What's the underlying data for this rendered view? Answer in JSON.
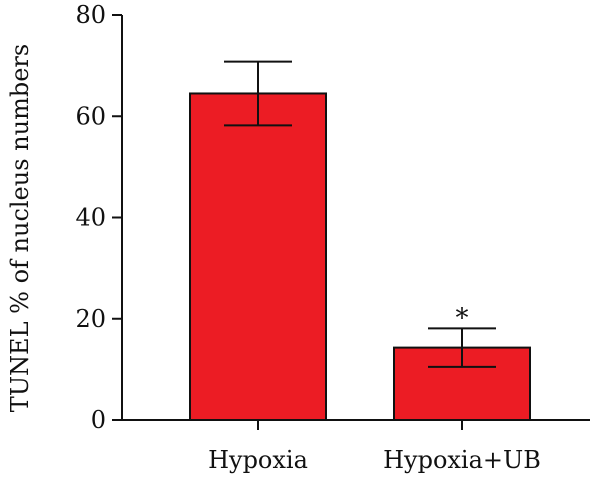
{
  "chart_data": {
    "type": "bar",
    "categories": [
      "Hypoxia",
      "Hypoxia+UB"
    ],
    "values": [
      64.5,
      14.3
    ],
    "errors": [
      6.3,
      3.8
    ],
    "annotations": [
      "",
      "*"
    ],
    "title": "",
    "xlabel": "",
    "ylabel": "TUNEL % of nucleus numbers",
    "ylim": [
      0,
      80
    ],
    "yticks": [
      0,
      20,
      40,
      60,
      80
    ],
    "grid": false,
    "legend": "none",
    "bar_color": "#ec1c24",
    "edge_color": "#111111"
  }
}
